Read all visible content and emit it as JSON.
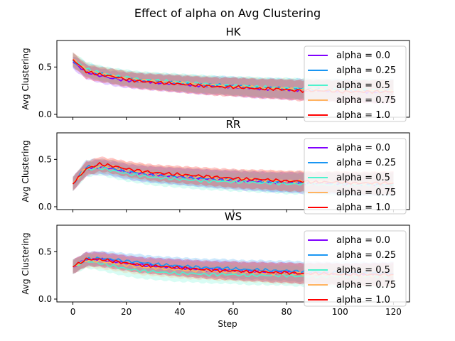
{
  "figure": {
    "suptitle": "Effect of alpha on  Avg Clustering"
  },
  "chart_data": [
    {
      "type": "line",
      "title": "HK",
      "xlabel": "",
      "ylabel": "Avg Clustering",
      "xlim": [
        -6,
        126
      ],
      "ylim": [
        -0.03,
        0.78
      ],
      "xticks": [
        "0",
        "20",
        "40",
        "60",
        "80",
        "100",
        "120"
      ],
      "yticks": [
        "0.0",
        "0.5"
      ],
      "legend": "upper right",
      "shaded_band": true,
      "series": [
        {
          "name": "alpha = 0.0",
          "color": "#8000ff",
          "x": [
            0,
            5,
            10,
            15,
            20,
            25,
            30,
            35,
            40,
            45,
            50,
            55,
            60,
            65,
            70,
            75,
            80,
            85,
            90,
            95,
            100,
            105,
            110,
            115,
            120
          ],
          "y": [
            0.55,
            0.45,
            0.41,
            0.38,
            0.36,
            0.35,
            0.34,
            0.33,
            0.32,
            0.31,
            0.3,
            0.3,
            0.29,
            0.28,
            0.27,
            0.27,
            0.26,
            0.26,
            0.25,
            0.25,
            0.25,
            0.25,
            0.24,
            0.24,
            0.24
          ]
        },
        {
          "name": "alpha = 0.25",
          "color": "#1996f3",
          "x": [
            0,
            5,
            10,
            15,
            20,
            25,
            30,
            35,
            40,
            45,
            50,
            55,
            60,
            65,
            70,
            75,
            80,
            85,
            90,
            95,
            100,
            105,
            110,
            115,
            120
          ],
          "y": [
            0.57,
            0.47,
            0.43,
            0.4,
            0.38,
            0.36,
            0.35,
            0.34,
            0.33,
            0.32,
            0.31,
            0.31,
            0.3,
            0.29,
            0.28,
            0.28,
            0.27,
            0.27,
            0.26,
            0.26,
            0.26,
            0.25,
            0.25,
            0.25,
            0.25
          ]
        },
        {
          "name": "alpha = 0.5",
          "color": "#4df3ce",
          "x": [
            0,
            5,
            10,
            15,
            20,
            25,
            30,
            35,
            40,
            45,
            50,
            55,
            60,
            65,
            70,
            75,
            80,
            85,
            90,
            95,
            100,
            105,
            110,
            115,
            120
          ],
          "y": [
            0.58,
            0.48,
            0.44,
            0.41,
            0.39,
            0.37,
            0.36,
            0.35,
            0.34,
            0.33,
            0.32,
            0.31,
            0.3,
            0.3,
            0.29,
            0.28,
            0.28,
            0.27,
            0.27,
            0.26,
            0.26,
            0.26,
            0.26,
            0.25,
            0.25
          ]
        },
        {
          "name": "alpha = 0.75",
          "color": "#ffb360",
          "x": [
            0,
            5,
            10,
            15,
            20,
            25,
            30,
            35,
            40,
            45,
            50,
            55,
            60,
            65,
            70,
            75,
            80,
            85,
            90,
            95,
            100,
            105,
            110,
            115,
            120
          ],
          "y": [
            0.58,
            0.47,
            0.43,
            0.4,
            0.38,
            0.36,
            0.35,
            0.34,
            0.33,
            0.32,
            0.31,
            0.3,
            0.29,
            0.29,
            0.28,
            0.27,
            0.27,
            0.26,
            0.26,
            0.26,
            0.25,
            0.25,
            0.25,
            0.25,
            0.24
          ]
        },
        {
          "name": "alpha = 1.0",
          "color": "#ff0000",
          "x": [
            0,
            5,
            10,
            15,
            20,
            25,
            30,
            35,
            40,
            45,
            50,
            55,
            60,
            65,
            70,
            75,
            80,
            85,
            90,
            95,
            100,
            105,
            110,
            115,
            120
          ],
          "y": [
            0.58,
            0.45,
            0.42,
            0.4,
            0.37,
            0.35,
            0.34,
            0.33,
            0.32,
            0.31,
            0.3,
            0.29,
            0.29,
            0.28,
            0.27,
            0.27,
            0.26,
            0.25,
            0.25,
            0.25,
            0.24,
            0.24,
            0.24,
            0.24,
            0.24
          ]
        }
      ]
    },
    {
      "type": "line",
      "title": "RR",
      "xlabel": "",
      "ylabel": "Avg Clustering",
      "xlim": [
        -6,
        126
      ],
      "ylim": [
        -0.03,
        0.78
      ],
      "xticks": [
        "0",
        "20",
        "40",
        "60",
        "80",
        "100",
        "120"
      ],
      "yticks": [
        "0.0",
        "0.5"
      ],
      "legend": "upper right",
      "shaded_band": true,
      "series": [
        {
          "name": "alpha = 0.0",
          "color": "#8000ff",
          "x": [
            0,
            5,
            10,
            15,
            20,
            25,
            30,
            35,
            40,
            45,
            50,
            55,
            60,
            65,
            70,
            75,
            80,
            85,
            90,
            95,
            100,
            105,
            110,
            115,
            120
          ],
          "y": [
            0.24,
            0.4,
            0.42,
            0.4,
            0.37,
            0.35,
            0.34,
            0.33,
            0.32,
            0.31,
            0.3,
            0.29,
            0.28,
            0.27,
            0.27,
            0.26,
            0.26,
            0.25,
            0.25,
            0.25,
            0.24,
            0.24,
            0.24,
            0.24,
            0.24
          ]
        },
        {
          "name": "alpha = 0.25",
          "color": "#1996f3",
          "x": [
            0,
            5,
            10,
            15,
            20,
            25,
            30,
            35,
            40,
            45,
            50,
            55,
            60,
            65,
            70,
            75,
            80,
            85,
            90,
            95,
            100,
            105,
            110,
            115,
            120
          ],
          "y": [
            0.24,
            0.42,
            0.43,
            0.41,
            0.38,
            0.36,
            0.34,
            0.33,
            0.32,
            0.31,
            0.3,
            0.29,
            0.29,
            0.28,
            0.27,
            0.26,
            0.26,
            0.26,
            0.25,
            0.25,
            0.25,
            0.24,
            0.24,
            0.24,
            0.24
          ]
        },
        {
          "name": "alpha = 0.5",
          "color": "#4df3ce",
          "x": [
            0,
            5,
            10,
            15,
            20,
            25,
            30,
            35,
            40,
            45,
            50,
            55,
            60,
            65,
            70,
            75,
            80,
            85,
            90,
            95,
            100,
            105,
            110,
            115,
            120
          ],
          "y": [
            0.24,
            0.39,
            0.41,
            0.38,
            0.35,
            0.33,
            0.31,
            0.3,
            0.29,
            0.28,
            0.27,
            0.27,
            0.26,
            0.26,
            0.25,
            0.25,
            0.24,
            0.24,
            0.24,
            0.23,
            0.23,
            0.23,
            0.23,
            0.23,
            0.23
          ]
        },
        {
          "name": "alpha = 0.75",
          "color": "#ffb360",
          "x": [
            0,
            5,
            10,
            15,
            20,
            25,
            30,
            35,
            40,
            45,
            50,
            55,
            60,
            65,
            70,
            75,
            80,
            85,
            90,
            95,
            100,
            105,
            110,
            115,
            120
          ],
          "y": [
            0.24,
            0.41,
            0.43,
            0.42,
            0.39,
            0.37,
            0.35,
            0.34,
            0.33,
            0.32,
            0.31,
            0.3,
            0.29,
            0.29,
            0.28,
            0.28,
            0.27,
            0.27,
            0.26,
            0.26,
            0.26,
            0.25,
            0.25,
            0.25,
            0.25
          ]
        },
        {
          "name": "alpha = 1.0",
          "color": "#ff0000",
          "x": [
            0,
            5,
            10,
            15,
            20,
            25,
            30,
            35,
            40,
            45,
            50,
            55,
            60,
            65,
            70,
            75,
            80,
            85,
            90,
            95,
            100,
            105,
            110,
            115,
            120
          ],
          "y": [
            0.24,
            0.4,
            0.45,
            0.43,
            0.4,
            0.38,
            0.36,
            0.35,
            0.34,
            0.33,
            0.32,
            0.31,
            0.3,
            0.29,
            0.29,
            0.28,
            0.27,
            0.27,
            0.26,
            0.26,
            0.26,
            0.25,
            0.25,
            0.25,
            0.25
          ]
        }
      ]
    },
    {
      "type": "line",
      "title": "WS",
      "xlabel": "Step",
      "ylabel": "Avg Clustering",
      "xlim": [
        -6,
        126
      ],
      "ylim": [
        -0.03,
        0.78
      ],
      "xticks": [
        "0",
        "20",
        "40",
        "60",
        "80",
        "100",
        "120"
      ],
      "yticks": [
        "0.0",
        "0.5"
      ],
      "legend": "upper right",
      "shaded_band": true,
      "series": [
        {
          "name": "alpha = 0.0",
          "color": "#8000ff",
          "x": [
            0,
            5,
            10,
            15,
            20,
            25,
            30,
            35,
            40,
            45,
            50,
            55,
            60,
            65,
            70,
            75,
            80,
            85,
            90,
            95,
            100,
            105,
            110,
            115,
            120
          ],
          "y": [
            0.34,
            0.42,
            0.42,
            0.4,
            0.38,
            0.36,
            0.35,
            0.34,
            0.33,
            0.32,
            0.31,
            0.31,
            0.3,
            0.29,
            0.29,
            0.28,
            0.28,
            0.27,
            0.27,
            0.27,
            0.26,
            0.26,
            0.26,
            0.26,
            0.26
          ]
        },
        {
          "name": "alpha = 0.25",
          "color": "#1996f3",
          "x": [
            0,
            5,
            10,
            15,
            20,
            25,
            30,
            35,
            40,
            45,
            50,
            55,
            60,
            65,
            70,
            75,
            80,
            85,
            90,
            95,
            100,
            105,
            110,
            115,
            120
          ],
          "y": [
            0.34,
            0.42,
            0.43,
            0.42,
            0.4,
            0.39,
            0.37,
            0.36,
            0.35,
            0.34,
            0.33,
            0.33,
            0.32,
            0.31,
            0.31,
            0.3,
            0.3,
            0.29,
            0.29,
            0.28,
            0.28,
            0.28,
            0.27,
            0.27,
            0.27
          ]
        },
        {
          "name": "alpha = 0.5",
          "color": "#4df3ce",
          "x": [
            0,
            5,
            10,
            15,
            20,
            25,
            30,
            35,
            40,
            45,
            50,
            55,
            60,
            65,
            70,
            75,
            80,
            85,
            90,
            95,
            100,
            105,
            110,
            115,
            120
          ],
          "y": [
            0.34,
            0.4,
            0.38,
            0.35,
            0.32,
            0.3,
            0.29,
            0.28,
            0.27,
            0.27,
            0.26,
            0.26,
            0.26,
            0.25,
            0.25,
            0.25,
            0.25,
            0.24,
            0.24,
            0.24,
            0.24,
            0.24,
            0.24,
            0.24,
            0.24
          ]
        },
        {
          "name": "alpha = 0.75",
          "color": "#ffb360",
          "x": [
            0,
            5,
            10,
            15,
            20,
            25,
            30,
            35,
            40,
            45,
            50,
            55,
            60,
            65,
            70,
            75,
            80,
            85,
            90,
            95,
            100,
            105,
            110,
            115,
            120
          ],
          "y": [
            0.34,
            0.41,
            0.4,
            0.38,
            0.36,
            0.34,
            0.33,
            0.32,
            0.31,
            0.3,
            0.3,
            0.29,
            0.29,
            0.28,
            0.28,
            0.27,
            0.27,
            0.27,
            0.26,
            0.26,
            0.26,
            0.25,
            0.25,
            0.25,
            0.25
          ]
        },
        {
          "name": "alpha = 1.0",
          "color": "#ff0000",
          "x": [
            0,
            5,
            10,
            15,
            20,
            25,
            30,
            35,
            40,
            45,
            50,
            55,
            60,
            65,
            70,
            75,
            80,
            85,
            90,
            95,
            100,
            105,
            110,
            115,
            120
          ],
          "y": [
            0.34,
            0.42,
            0.42,
            0.4,
            0.38,
            0.36,
            0.35,
            0.34,
            0.33,
            0.32,
            0.31,
            0.3,
            0.3,
            0.29,
            0.29,
            0.28,
            0.28,
            0.27,
            0.27,
            0.27,
            0.26,
            0.26,
            0.26,
            0.26,
            0.26
          ]
        }
      ]
    }
  ]
}
